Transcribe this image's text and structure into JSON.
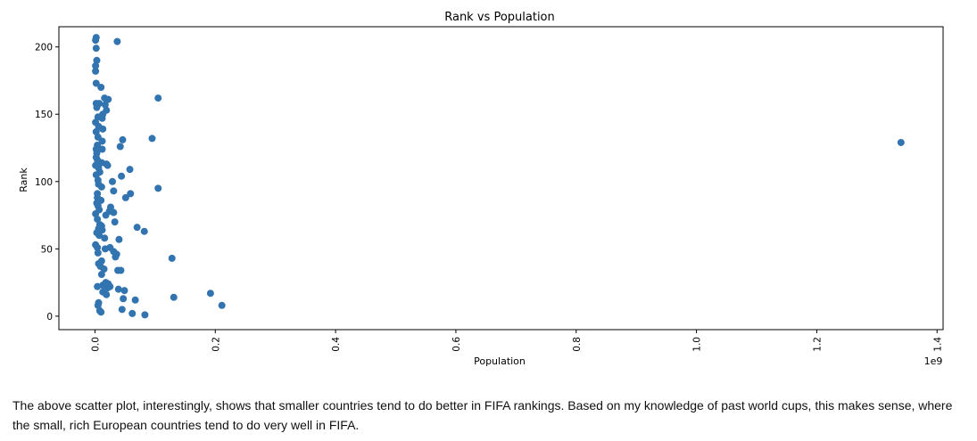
{
  "chart_data": {
    "type": "scatter",
    "title": "Rank vs Population",
    "xlabel": "Population",
    "ylabel": "Rank",
    "x_offset_label": "1e9",
    "xlim": [
      -0.06,
      1.41
    ],
    "ylim": [
      -10,
      215
    ],
    "xticks": [
      0.0,
      0.2,
      0.4,
      0.6,
      0.8,
      1.0,
      1.2,
      1.4
    ],
    "xtick_labels": [
      "0.0",
      "0.2",
      "0.4",
      "0.6",
      "0.8",
      "1.0",
      "1.2",
      "1.4"
    ],
    "yticks": [
      0,
      50,
      100,
      150,
      200
    ],
    "ytick_labels": [
      "0",
      "50",
      "100",
      "150",
      "200"
    ],
    "grid": false,
    "marker_color": "#3274b0",
    "points": [
      {
        "x": 0.002,
        "y": 207
      },
      {
        "x": 0.001,
        "y": 205
      },
      {
        "x": 0.037,
        "y": 204
      },
      {
        "x": 0.002,
        "y": 199
      },
      {
        "x": 0.003,
        "y": 190
      },
      {
        "x": 0.001,
        "y": 186
      },
      {
        "x": 0.001,
        "y": 182
      },
      {
        "x": 0.002,
        "y": 173
      },
      {
        "x": 0.01,
        "y": 170
      },
      {
        "x": 0.105,
        "y": 162
      },
      {
        "x": 0.016,
        "y": 162
      },
      {
        "x": 0.022,
        "y": 161
      },
      {
        "x": 0.002,
        "y": 158
      },
      {
        "x": 0.007,
        "y": 158
      },
      {
        "x": 0.017,
        "y": 157
      },
      {
        "x": 0.003,
        "y": 155
      },
      {
        "x": 0.019,
        "y": 153
      },
      {
        "x": 0.013,
        "y": 150
      },
      {
        "x": 0.005,
        "y": 148
      },
      {
        "x": 0.012,
        "y": 147
      },
      {
        "x": 0.001,
        "y": 144
      },
      {
        "x": 0.006,
        "y": 141
      },
      {
        "x": 0.013,
        "y": 139
      },
      {
        "x": 0.002,
        "y": 137
      },
      {
        "x": 0.005,
        "y": 133
      },
      {
        "x": 0.095,
        "y": 132
      },
      {
        "x": 0.046,
        "y": 131
      },
      {
        "x": 0.012,
        "y": 130
      },
      {
        "x": 0.004,
        "y": 127
      },
      {
        "x": 0.042,
        "y": 126
      },
      {
        "x": 0.002,
        "y": 124
      },
      {
        "x": 0.012,
        "y": 124
      },
      {
        "x": 0.003,
        "y": 121
      },
      {
        "x": 0.002,
        "y": 118
      },
      {
        "x": 0.004,
        "y": 116
      },
      {
        "x": 0.011,
        "y": 114
      },
      {
        "x": 0.001,
        "y": 112
      },
      {
        "x": 0.019,
        "y": 113
      },
      {
        "x": 0.021,
        "y": 112
      },
      {
        "x": 0.006,
        "y": 110
      },
      {
        "x": 0.058,
        "y": 109
      },
      {
        "x": 0.008,
        "y": 107
      },
      {
        "x": 0.002,
        "y": 105
      },
      {
        "x": 0.044,
        "y": 104
      },
      {
        "x": 0.005,
        "y": 101
      },
      {
        "x": 0.029,
        "y": 100
      },
      {
        "x": 0.006,
        "y": 98
      },
      {
        "x": 0.011,
        "y": 96
      },
      {
        "x": 0.105,
        "y": 95
      },
      {
        "x": 0.031,
        "y": 93
      },
      {
        "x": 0.004,
        "y": 91
      },
      {
        "x": 0.059,
        "y": 91
      },
      {
        "x": 0.004,
        "y": 88
      },
      {
        "x": 0.051,
        "y": 88
      },
      {
        "x": 0.01,
        "y": 86
      },
      {
        "x": 0.003,
        "y": 84
      },
      {
        "x": 0.005,
        "y": 82
      },
      {
        "x": 0.026,
        "y": 81
      },
      {
        "x": 0.007,
        "y": 79
      },
      {
        "x": 0.024,
        "y": 78
      },
      {
        "x": 0.031,
        "y": 77
      },
      {
        "x": 0.001,
        "y": 76
      },
      {
        "x": 0.018,
        "y": 75
      },
      {
        "x": 0.004,
        "y": 72
      },
      {
        "x": 0.033,
        "y": 70
      },
      {
        "x": 0.008,
        "y": 68
      },
      {
        "x": 0.011,
        "y": 67
      },
      {
        "x": 0.07,
        "y": 66
      },
      {
        "x": 0.006,
        "y": 65
      },
      {
        "x": 0.012,
        "y": 64
      },
      {
        "x": 0.082,
        "y": 63
      },
      {
        "x": 0.003,
        "y": 62
      },
      {
        "x": 0.007,
        "y": 60
      },
      {
        "x": 0.016,
        "y": 58
      },
      {
        "x": 0.04,
        "y": 57
      },
      {
        "x": 0.001,
        "y": 53
      },
      {
        "x": 0.004,
        "y": 51
      },
      {
        "x": 0.025,
        "y": 51
      },
      {
        "x": 0.017,
        "y": 50
      },
      {
        "x": 0.031,
        "y": 48
      },
      {
        "x": 0.005,
        "y": 47
      },
      {
        "x": 0.036,
        "y": 46
      },
      {
        "x": 0.034,
        "y": 44
      },
      {
        "x": 0.128,
        "y": 43
      },
      {
        "x": 0.011,
        "y": 41
      },
      {
        "x": 0.006,
        "y": 39
      },
      {
        "x": 0.009,
        "y": 37
      },
      {
        "x": 0.015,
        "y": 35
      },
      {
        "x": 0.038,
        "y": 34
      },
      {
        "x": 0.043,
        "y": 34
      },
      {
        "x": 0.011,
        "y": 31
      },
      {
        "x": 0.018,
        "y": 25
      },
      {
        "x": 0.022,
        "y": 24
      },
      {
        "x": 0.004,
        "y": 22
      },
      {
        "x": 0.013,
        "y": 23
      },
      {
        "x": 0.025,
        "y": 22
      },
      {
        "x": 0.021,
        "y": 21
      },
      {
        "x": 0.039,
        "y": 20
      },
      {
        "x": 0.049,
        "y": 19
      },
      {
        "x": 0.013,
        "y": 18
      },
      {
        "x": 0.019,
        "y": 16
      },
      {
        "x": 0.192,
        "y": 17
      },
      {
        "x": 0.131,
        "y": 14
      },
      {
        "x": 0.047,
        "y": 13
      },
      {
        "x": 0.067,
        "y": 12
      },
      {
        "x": 0.006,
        "y": 10
      },
      {
        "x": 0.005,
        "y": 8
      },
      {
        "x": 0.211,
        "y": 8
      },
      {
        "x": 0.045,
        "y": 5
      },
      {
        "x": 0.008,
        "y": 4
      },
      {
        "x": 0.01,
        "y": 3
      },
      {
        "x": 0.062,
        "y": 2
      },
      {
        "x": 0.083,
        "y": 1
      },
      {
        "x": 1.34,
        "y": 129
      }
    ]
  },
  "caption": "The above scatter plot, interestingly, shows that smaller countries tend to do better in FIFA rankings. Based on my knowledge of past world cups, this makes sense, where the small, rich European countries tend to do very well in FIFA."
}
